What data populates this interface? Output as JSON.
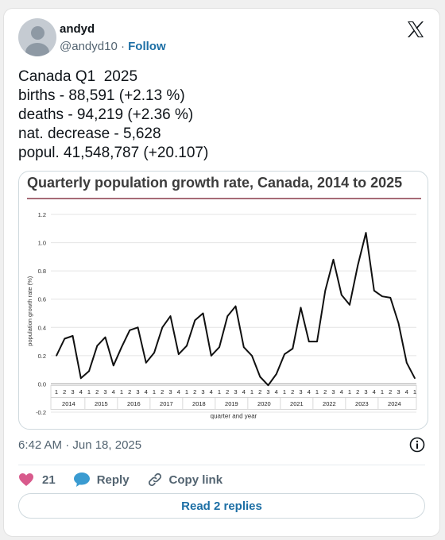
{
  "author": {
    "name": "andyd",
    "handle": "@andyd10",
    "separator": "·",
    "follow_label": "Follow"
  },
  "tweet": {
    "lines": [
      "Canada Q1  2025",
      "births - 88,591 (+2.13 %)",
      "deaths - 94,219 (+2.36 %)",
      "nat. decrease - 5,628",
      "popul. 41,548,787 (+20.107)"
    ],
    "timestamp": "6:42 AM · Jun 18, 2025"
  },
  "actions": {
    "like_count": "21",
    "reply_label": "Reply",
    "copy_label": "Copy link"
  },
  "replies_button": "Read 2 replies",
  "icons": {
    "like": "heart-icon",
    "reply": "speech-bubble-icon",
    "copy": "link-icon",
    "logo": "x-logo-icon",
    "info": "info-icon"
  },
  "colors": {
    "link": "#1d6fa5",
    "heart": "#d85a8c",
    "reply_bubble": "#3a9bd1",
    "title_rule": "#8a3a4a"
  },
  "chart_data": {
    "type": "line",
    "title": "Quarterly population growth rate, Canada, 2014 to 2025",
    "xlabel": "quarter and year",
    "ylabel": "population growth rate (%)",
    "ylim": [
      -0.2,
      1.2
    ],
    "yticks": [
      "1.2",
      "1.0",
      "0.8",
      "0.6",
      "0.4",
      "0.2",
      "0.0",
      "-0.2"
    ],
    "quarters": [
      "1",
      "2",
      "3",
      "4",
      "1",
      "2",
      "3",
      "4",
      "1",
      "2",
      "3",
      "4",
      "1",
      "2",
      "3",
      "4",
      "1",
      "2",
      "3",
      "4",
      "1",
      "2",
      "3",
      "4",
      "1",
      "2",
      "3",
      "4",
      "1",
      "2",
      "3",
      "4",
      "1",
      "2",
      "3",
      "4",
      "1",
      "2",
      "3",
      "4",
      "1",
      "2",
      "3",
      "4",
      "1"
    ],
    "years": [
      "2014",
      "2015",
      "2016",
      "2017",
      "2018",
      "2019",
      "2020",
      "2021",
      "2022",
      "2023",
      "2024"
    ],
    "values": [
      0.2,
      0.32,
      0.34,
      0.04,
      0.09,
      0.27,
      0.33,
      0.13,
      0.26,
      0.38,
      0.4,
      0.15,
      0.22,
      0.4,
      0.48,
      0.21,
      0.27,
      0.45,
      0.5,
      0.2,
      0.26,
      0.48,
      0.55,
      0.26,
      0.2,
      0.05,
      -0.01,
      0.07,
      0.21,
      0.25,
      0.54,
      0.3,
      0.3,
      0.66,
      0.88,
      0.63,
      0.56,
      0.84,
      1.07,
      0.66,
      0.62,
      0.61,
      0.43,
      0.15,
      0.04
    ],
    "grid": "horizontal"
  }
}
